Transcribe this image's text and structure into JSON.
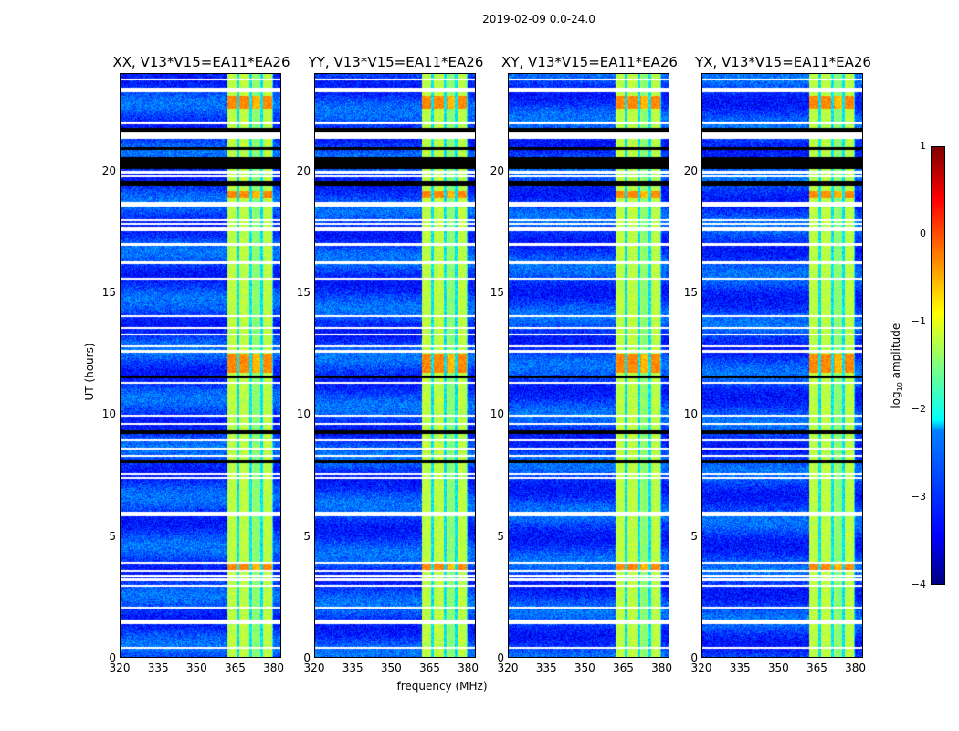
{
  "figure": {
    "suptitle": "2019-02-09 0.0-24.0",
    "xlabel": "frequency (MHz)",
    "ylabel": "UT (hours)"
  },
  "colorbar": {
    "label": "log",
    "label_sub": "10",
    "label_rest": " amplitude",
    "ticks": [
      "1",
      "0",
      "−1",
      "−2",
      "−3",
      "−4"
    ],
    "range": [
      -4,
      1
    ],
    "colormap": "jet"
  },
  "chart_data": {
    "type": "heatmap",
    "xlim": [
      320,
      383
    ],
    "ylim": [
      0,
      24
    ],
    "xticks": [
      "320",
      "335",
      "350",
      "365",
      "380"
    ],
    "xtick_values": [
      320,
      335,
      350,
      365,
      380
    ],
    "yticks": [
      "0",
      "5",
      "10",
      "15",
      "20"
    ],
    "ytick_values": [
      0,
      5,
      10,
      15,
      20
    ],
    "strong_band_mhz": [
      362,
      380
    ],
    "band_gaps_mhz": [
      366,
      371,
      375.5,
      380
    ],
    "flagged_hours_white": [
      0.4,
      1.4,
      1.5,
      2.05,
      2.95,
      3.2,
      3.35,
      3.55,
      3.9,
      5.85,
      5.95,
      7.4,
      7.55,
      8.3,
      8.6,
      8.95,
      9.6,
      9.95,
      11.3,
      12.6,
      12.8,
      13.3,
      13.55,
      14.05,
      15.6,
      16.25,
      17.0,
      17.6,
      17.7,
      17.85,
      18.0,
      18.6,
      18.7,
      19.8,
      19.95,
      20.0,
      21.4,
      21.5,
      21.55,
      22.0,
      23.3,
      23.4,
      23.8
    ],
    "flagged_hours_black": [
      [
        8.0,
        8.15
      ],
      [
        9.2,
        9.35
      ],
      [
        11.5,
        11.6
      ],
      [
        19.4,
        19.6
      ],
      [
        20.1,
        20.6
      ],
      [
        20.9,
        21.0
      ],
      [
        21.6,
        21.8
      ]
    ],
    "bright_hours": [
      [
        11.7,
        12.5
      ],
      [
        18.9,
        19.2
      ],
      [
        19.9,
        20.0
      ],
      [
        22.6,
        23.1
      ],
      [
        3.5,
        3.9
      ]
    ],
    "panels": [
      {
        "title": "XX, V13*V15=EA11*EA26"
      },
      {
        "title": "YY, V13*V15=EA11*EA26"
      },
      {
        "title": "XY, V13*V15=EA11*EA26"
      },
      {
        "title": "YX, V13*V15=EA11*EA26"
      }
    ]
  }
}
